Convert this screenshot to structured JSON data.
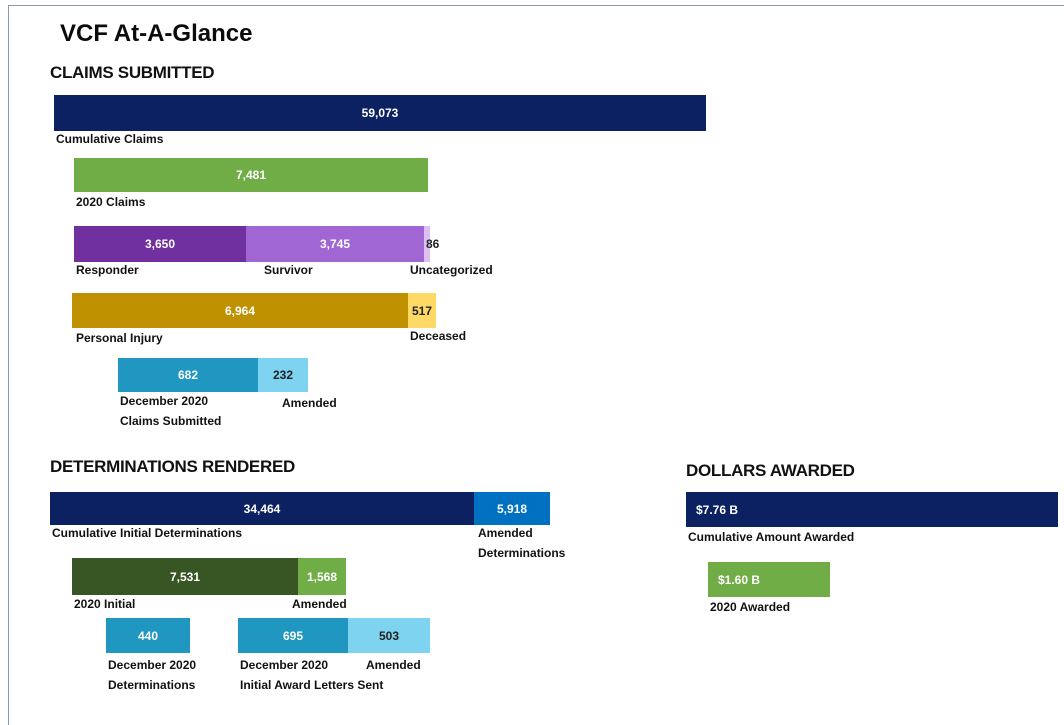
{
  "title": "VCF At-A-Glance",
  "claims_submitted": {
    "heading": "CLAIMS SUBMITTED",
    "cumulative": {
      "value": "59,073",
      "label": "Cumulative Claims"
    },
    "claims_2020": {
      "value": "7,481",
      "label": "2020 Claims"
    },
    "responder": {
      "value": "3,650",
      "label": "Responder"
    },
    "survivor": {
      "value": "3,745",
      "label": "Survivor"
    },
    "uncategorized": {
      "value": "86",
      "label": "Uncategorized"
    },
    "personal_injury": {
      "value": "6,964",
      "label": "Personal Injury"
    },
    "deceased": {
      "value": "517",
      "label": "Deceased"
    },
    "december_2020": {
      "value": "682",
      "label": [
        "December 2020",
        "Claims Submitted"
      ]
    },
    "amended": {
      "value": "232",
      "label": "Amended"
    }
  },
  "determinations_rendered": {
    "heading": "DETERMINATIONS RENDERED",
    "cumulative": {
      "value": "34,464",
      "label": "Cumulative Initial Determinations"
    },
    "amended": {
      "value": "5,918",
      "label": [
        "Amended",
        "Determinations"
      ]
    },
    "initial_2020": {
      "value": "7,531",
      "label": "2020 Initial"
    },
    "amended_2020": {
      "value": "1,568",
      "label": "Amended"
    },
    "december_2020": {
      "value": "440",
      "label": [
        "December 2020",
        "Determinations"
      ]
    },
    "december_2020_letters": {
      "value": "695",
      "label": [
        "December 2020",
        "Initial Award Letters Sent"
      ]
    },
    "december_2020_amended": {
      "value": "503",
      "label": "Amended"
    }
  },
  "dollars_awarded": {
    "heading": "DOLLARS AWARDED",
    "cumulative": {
      "value": "$7.76 B",
      "label": "Cumulative Amount Awarded"
    },
    "awarded_2020": {
      "value": "$1.60 B",
      "label": "2020 Awarded"
    }
  }
}
